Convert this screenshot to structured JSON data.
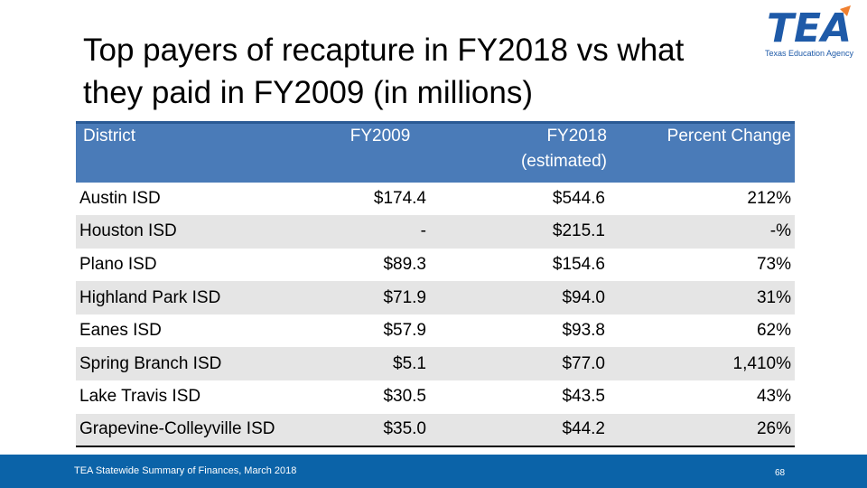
{
  "title": "Top payers of recapture in FY2018 vs what they paid in FY2009 (in millions)",
  "logo": {
    "text": "TEA",
    "subtitle": "Texas Education Agency",
    "color": "#1e5aa8",
    "accent": "#f08030"
  },
  "table": {
    "headers": {
      "district": "District",
      "fy2009": "FY2009",
      "fy2018": "FY2018 (estimated)",
      "change": "Percent Change"
    },
    "rows": [
      {
        "district": "Austin ISD",
        "fy2009": "$174.4",
        "fy2018": "$544.6",
        "change": "212%"
      },
      {
        "district": "Houston ISD",
        "fy2009": "-",
        "fy2018": "$215.1",
        "change": "-%"
      },
      {
        "district": "Plano ISD",
        "fy2009": "$89.3",
        "fy2018": "$154.6",
        "change": "73%"
      },
      {
        "district": "Highland Park ISD",
        "fy2009": "$71.9",
        "fy2018": "$94.0",
        "change": "31%"
      },
      {
        "district": "Eanes ISD",
        "fy2009": "$57.9",
        "fy2018": "$93.8",
        "change": "62%"
      },
      {
        "district": "Spring Branch ISD",
        "fy2009": "$5.1",
        "fy2018": "$77.0",
        "change": "1,410%"
      },
      {
        "district": "Lake Travis ISD",
        "fy2009": "$30.5",
        "fy2018": "$43.5",
        "change": "43%"
      },
      {
        "district": "Grapevine-Colleyville ISD",
        "fy2009": "$35.0",
        "fy2018": "$44.2",
        "change": "26%"
      }
    ]
  },
  "footer": {
    "text": "TEA Statewide Summary of Finances, March 2018",
    "page": "68",
    "color": "#0b63a8"
  }
}
